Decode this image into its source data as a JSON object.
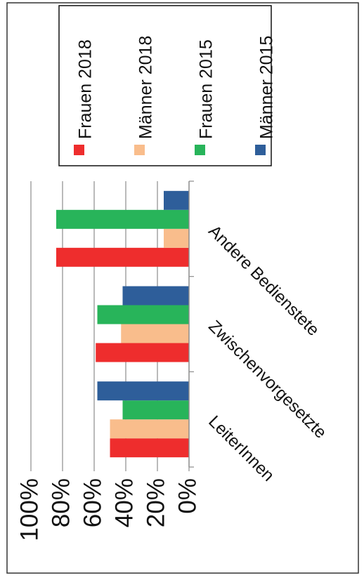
{
  "chart_data": {
    "type": "bar",
    "orientation": "rotated-90",
    "categories": [
      "LeiterInnen",
      "Zwischenvorgesetzte",
      "Andere Bedienstete"
    ],
    "series": [
      {
        "name": "Frauen 2018",
        "values": [
          50,
          59,
          84
        ],
        "color": "#ee2d2d"
      },
      {
        "name": "Männer 2018",
        "values": [
          50,
          43,
          16
        ],
        "color": "#f9bd8c"
      },
      {
        "name": "Frauen 2015",
        "values": [
          42,
          58,
          84
        ],
        "color": "#28b45a"
      },
      {
        "name": "Männer 2015",
        "values": [
          58,
          42,
          16
        ],
        "color": "#2e5e9a"
      }
    ],
    "yticks": [
      "0%",
      "20%",
      "40%",
      "60%",
      "80%",
      "100%"
    ],
    "ylim": [
      0,
      100
    ],
    "grid": true,
    "legend_position": "top"
  }
}
